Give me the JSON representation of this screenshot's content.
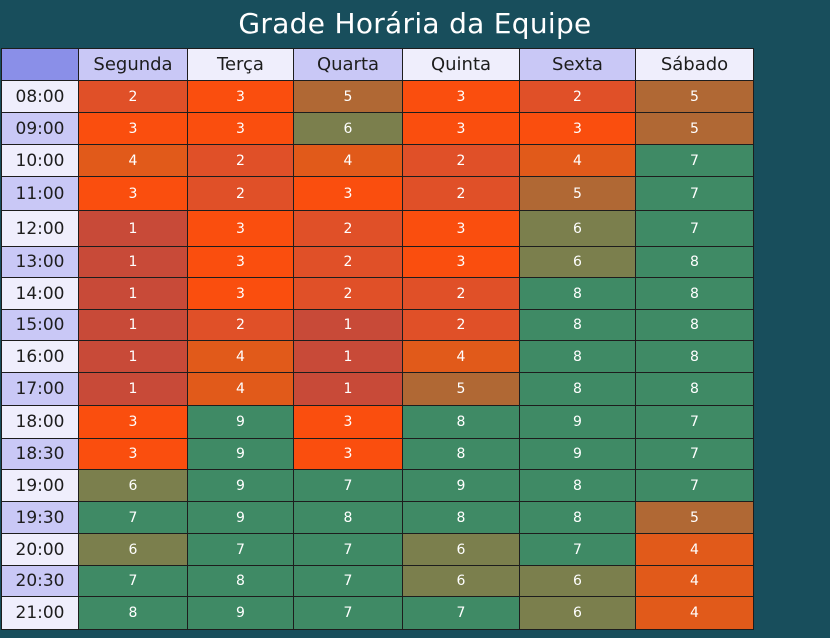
{
  "title": "Grade Horária da Equipe",
  "days": [
    "Segunda",
    "Terça",
    "Quarta",
    "Quinta",
    "Sexta",
    "Sábado"
  ],
  "color_scale": {
    "1": "#c84a38",
    "2": "#e05028",
    "3": "#fa4e0e",
    "4": "#e15a1a",
    "5": "#b06834",
    "6": "#7b7f4d",
    "7": "#3f8a65",
    "8": "#3f8a65",
    "9": "#3f8a65"
  },
  "rows": [
    {
      "time": "08:00",
      "values": [
        2,
        3,
        5,
        3,
        2,
        5
      ]
    },
    {
      "time": "09:00",
      "values": [
        3,
        3,
        6,
        3,
        3,
        5
      ]
    },
    {
      "time": "10:00",
      "values": [
        4,
        2,
        4,
        2,
        4,
        7
      ]
    },
    {
      "time": "11:00",
      "values": [
        3,
        2,
        3,
        2,
        5,
        7
      ]
    },
    {
      "time": "12:00",
      "values": [
        1,
        3,
        2,
        3,
        6,
        7
      ]
    },
    {
      "time": "13:00",
      "values": [
        1,
        3,
        2,
        3,
        6,
        8
      ]
    },
    {
      "time": "14:00",
      "values": [
        1,
        3,
        2,
        2,
        8,
        8
      ]
    },
    {
      "time": "15:00",
      "values": [
        1,
        2,
        1,
        2,
        8,
        8
      ]
    },
    {
      "time": "16:00",
      "values": [
        1,
        4,
        1,
        4,
        8,
        8
      ]
    },
    {
      "time": "17:00",
      "values": [
        1,
        4,
        1,
        5,
        8,
        8
      ]
    },
    {
      "time": "18:00",
      "values": [
        3,
        9,
        3,
        8,
        9,
        7
      ]
    },
    {
      "time": "18:30",
      "values": [
        3,
        9,
        3,
        8,
        9,
        7
      ]
    },
    {
      "time": "19:00",
      "values": [
        6,
        9,
        7,
        9,
        8,
        7
      ]
    },
    {
      "time": "19:30",
      "values": [
        7,
        9,
        8,
        8,
        8,
        5
      ]
    },
    {
      "time": "20:00",
      "values": [
        6,
        7,
        7,
        6,
        7,
        4
      ]
    },
    {
      "time": "20:30",
      "values": [
        7,
        8,
        7,
        6,
        6,
        4
      ]
    },
    {
      "time": "21:00",
      "values": [
        8,
        9,
        7,
        7,
        6,
        4
      ]
    }
  ]
}
